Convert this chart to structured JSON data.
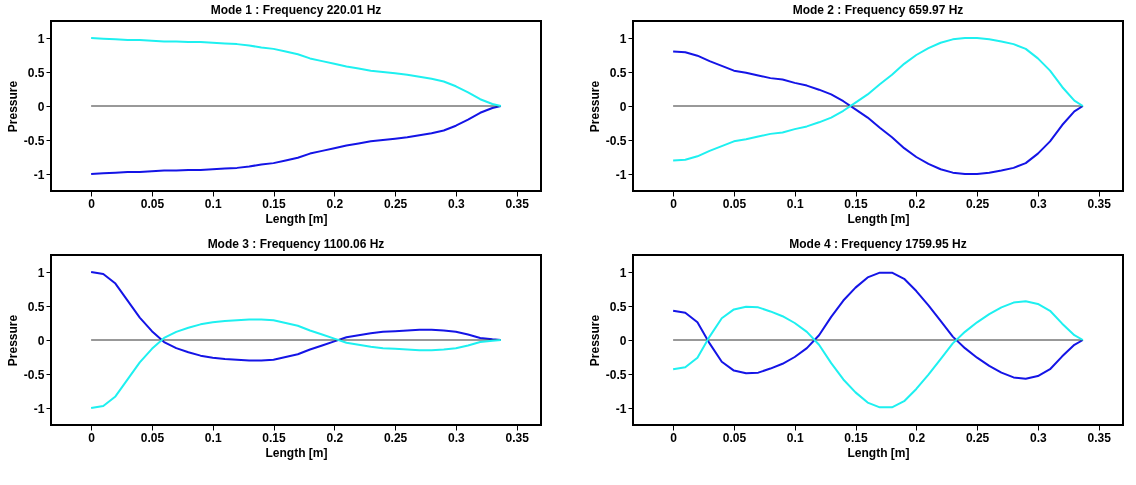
{
  "chart_data": [
    {
      "type": "line",
      "title": "Mode 1 : Frequency 220.01 Hz",
      "xlabel": "Length [m]",
      "ylabel": "Pressure",
      "x": [
        0,
        0.01,
        0.02,
        0.03,
        0.04,
        0.05,
        0.06,
        0.07,
        0.08,
        0.09,
        0.1,
        0.11,
        0.12,
        0.13,
        0.14,
        0.15,
        0.16,
        0.17,
        0.18,
        0.19,
        0.2,
        0.21,
        0.22,
        0.23,
        0.24,
        0.25,
        0.26,
        0.27,
        0.28,
        0.29,
        0.3,
        0.31,
        0.32,
        0.33,
        0.337
      ],
      "series": [
        {
          "color": "#1414e6",
          "values": [
            -1.0,
            -0.99,
            -0.98,
            -0.97,
            -0.97,
            -0.96,
            -0.95,
            -0.95,
            -0.94,
            -0.94,
            -0.93,
            -0.92,
            -0.91,
            -0.89,
            -0.86,
            -0.84,
            -0.8,
            -0.76,
            -0.7,
            -0.66,
            -0.62,
            -0.58,
            -0.55,
            -0.52,
            -0.5,
            -0.48,
            -0.46,
            -0.43,
            -0.4,
            -0.36,
            -0.29,
            -0.2,
            -0.1,
            -0.03,
            0
          ]
        },
        {
          "color": "#1ef0f0",
          "values": [
            1.0,
            0.99,
            0.98,
            0.97,
            0.97,
            0.96,
            0.95,
            0.95,
            0.94,
            0.94,
            0.93,
            0.92,
            0.91,
            0.89,
            0.86,
            0.84,
            0.8,
            0.76,
            0.7,
            0.66,
            0.62,
            0.58,
            0.55,
            0.52,
            0.5,
            0.48,
            0.46,
            0.43,
            0.4,
            0.36,
            0.29,
            0.2,
            0.1,
            0.03,
            0
          ]
        }
      ],
      "xlim": [
        -0.033,
        0.37
      ],
      "ylim": [
        -1.25,
        1.25
      ],
      "xticks": [
        0,
        0.05,
        0.1,
        0.15,
        0.2,
        0.25,
        0.3,
        0.35
      ],
      "yticks": [
        -1,
        -0.5,
        0,
        0.5,
        1
      ],
      "ref_lines": [
        {
          "axis": "y",
          "value": 0,
          "color": "#333333"
        }
      ],
      "grid": false
    },
    {
      "type": "line",
      "title": "Mode 2 : Frequency 659.97 Hz",
      "xlabel": "Length [m]",
      "ylabel": "Pressure",
      "x": [
        0,
        0.01,
        0.02,
        0.03,
        0.04,
        0.05,
        0.06,
        0.07,
        0.08,
        0.09,
        0.1,
        0.11,
        0.12,
        0.13,
        0.14,
        0.15,
        0.16,
        0.17,
        0.18,
        0.19,
        0.2,
        0.21,
        0.22,
        0.23,
        0.24,
        0.25,
        0.26,
        0.27,
        0.28,
        0.29,
        0.3,
        0.31,
        0.32,
        0.33,
        0.337
      ],
      "series": [
        {
          "color": "#1414e6",
          "values": [
            0.8,
            0.79,
            0.74,
            0.66,
            0.59,
            0.52,
            0.49,
            0.45,
            0.41,
            0.39,
            0.34,
            0.3,
            0.24,
            0.17,
            0.07,
            -0.05,
            -0.17,
            -0.32,
            -0.46,
            -0.62,
            -0.75,
            -0.85,
            -0.93,
            -0.98,
            -1.0,
            -1.0,
            -0.98,
            -0.95,
            -0.91,
            -0.84,
            -0.7,
            -0.52,
            -0.28,
            -0.08,
            0
          ]
        },
        {
          "color": "#1ef0f0",
          "values": [
            -0.8,
            -0.79,
            -0.74,
            -0.66,
            -0.59,
            -0.52,
            -0.49,
            -0.45,
            -0.41,
            -0.39,
            -0.34,
            -0.3,
            -0.24,
            -0.17,
            -0.07,
            0.05,
            0.17,
            0.32,
            0.46,
            0.62,
            0.75,
            0.85,
            0.93,
            0.98,
            1.0,
            1.0,
            0.98,
            0.95,
            0.91,
            0.84,
            0.7,
            0.52,
            0.28,
            0.08,
            0
          ]
        }
      ],
      "xlim": [
        -0.033,
        0.37
      ],
      "ylim": [
        -1.25,
        1.25
      ],
      "xticks": [
        0,
        0.05,
        0.1,
        0.15,
        0.2,
        0.25,
        0.3,
        0.35
      ],
      "yticks": [
        -1,
        -0.5,
        0,
        0.5,
        1
      ],
      "ref_lines": [
        {
          "axis": "y",
          "value": 0,
          "color": "#333333"
        }
      ],
      "grid": false
    },
    {
      "type": "line",
      "title": "Mode 3 : Frequency 1100.06 Hz",
      "xlabel": "Length [m]",
      "ylabel": "Pressure",
      "x": [
        0,
        0.01,
        0.02,
        0.03,
        0.04,
        0.05,
        0.06,
        0.07,
        0.08,
        0.09,
        0.1,
        0.11,
        0.12,
        0.13,
        0.14,
        0.15,
        0.16,
        0.17,
        0.18,
        0.19,
        0.2,
        0.21,
        0.22,
        0.23,
        0.24,
        0.25,
        0.26,
        0.27,
        0.28,
        0.29,
        0.3,
        0.31,
        0.32,
        0.33,
        0.337
      ],
      "series": [
        {
          "color": "#1414e6",
          "values": [
            1.0,
            0.97,
            0.83,
            0.58,
            0.33,
            0.13,
            -0.03,
            -0.12,
            -0.18,
            -0.23,
            -0.26,
            -0.28,
            -0.29,
            -0.3,
            -0.3,
            -0.29,
            -0.25,
            -0.21,
            -0.14,
            -0.08,
            -0.02,
            0.04,
            0.07,
            0.1,
            0.12,
            0.13,
            0.14,
            0.15,
            0.15,
            0.14,
            0.12,
            0.08,
            0.03,
            0.01,
            0
          ]
        },
        {
          "color": "#1ef0f0",
          "values": [
            -1.0,
            -0.97,
            -0.83,
            -0.58,
            -0.33,
            -0.13,
            0.03,
            0.12,
            0.18,
            0.23,
            0.26,
            0.28,
            0.29,
            0.3,
            0.3,
            0.29,
            0.25,
            0.21,
            0.14,
            0.08,
            0.02,
            -0.04,
            -0.07,
            -0.1,
            -0.12,
            -0.13,
            -0.14,
            -0.15,
            -0.15,
            -0.14,
            -0.12,
            -0.08,
            -0.03,
            -0.01,
            0
          ]
        }
      ],
      "xlim": [
        -0.033,
        0.37
      ],
      "ylim": [
        -1.25,
        1.25
      ],
      "xticks": [
        0,
        0.05,
        0.1,
        0.15,
        0.2,
        0.25,
        0.3,
        0.35
      ],
      "yticks": [
        -1,
        -0.5,
        0,
        0.5,
        1
      ],
      "ref_lines": [
        {
          "axis": "y",
          "value": 0,
          "color": "#333333"
        }
      ],
      "grid": false
    },
    {
      "type": "line",
      "title": "Mode 4 : Frequency 1759.95 Hz",
      "xlabel": "Length [m]",
      "ylabel": "Pressure",
      "x": [
        0,
        0.01,
        0.02,
        0.03,
        0.04,
        0.05,
        0.06,
        0.07,
        0.08,
        0.09,
        0.1,
        0.11,
        0.12,
        0.13,
        0.14,
        0.15,
        0.16,
        0.17,
        0.18,
        0.19,
        0.2,
        0.21,
        0.22,
        0.23,
        0.24,
        0.25,
        0.26,
        0.27,
        0.28,
        0.29,
        0.3,
        0.31,
        0.32,
        0.33,
        0.337
      ],
      "series": [
        {
          "color": "#1414e6",
          "values": [
            0.43,
            0.4,
            0.26,
            -0.05,
            -0.32,
            -0.45,
            -0.49,
            -0.48,
            -0.42,
            -0.35,
            -0.25,
            -0.12,
            0.07,
            0.34,
            0.58,
            0.77,
            0.92,
            0.99,
            0.99,
            0.9,
            0.72,
            0.51,
            0.28,
            0.05,
            -0.12,
            -0.26,
            -0.38,
            -0.48,
            -0.55,
            -0.57,
            -0.53,
            -0.43,
            -0.24,
            -0.07,
            0
          ]
        },
        {
          "color": "#1ef0f0",
          "values": [
            -0.43,
            -0.4,
            -0.26,
            0.05,
            0.32,
            0.45,
            0.49,
            0.48,
            0.42,
            0.35,
            0.25,
            0.12,
            -0.07,
            -0.34,
            -0.58,
            -0.77,
            -0.92,
            -0.99,
            -0.99,
            -0.9,
            -0.72,
            -0.51,
            -0.28,
            -0.05,
            0.12,
            0.26,
            0.38,
            0.48,
            0.55,
            0.57,
            0.53,
            0.43,
            0.24,
            0.07,
            0
          ]
        }
      ],
      "xlim": [
        -0.033,
        0.37
      ],
      "ylim": [
        -1.25,
        1.25
      ],
      "xticks": [
        0,
        0.05,
        0.1,
        0.15,
        0.2,
        0.25,
        0.3,
        0.35
      ],
      "yticks": [
        -1,
        -0.5,
        0,
        0.5,
        1
      ],
      "ref_lines": [
        {
          "axis": "y",
          "value": 0,
          "color": "#333333"
        }
      ],
      "grid": false
    }
  ]
}
